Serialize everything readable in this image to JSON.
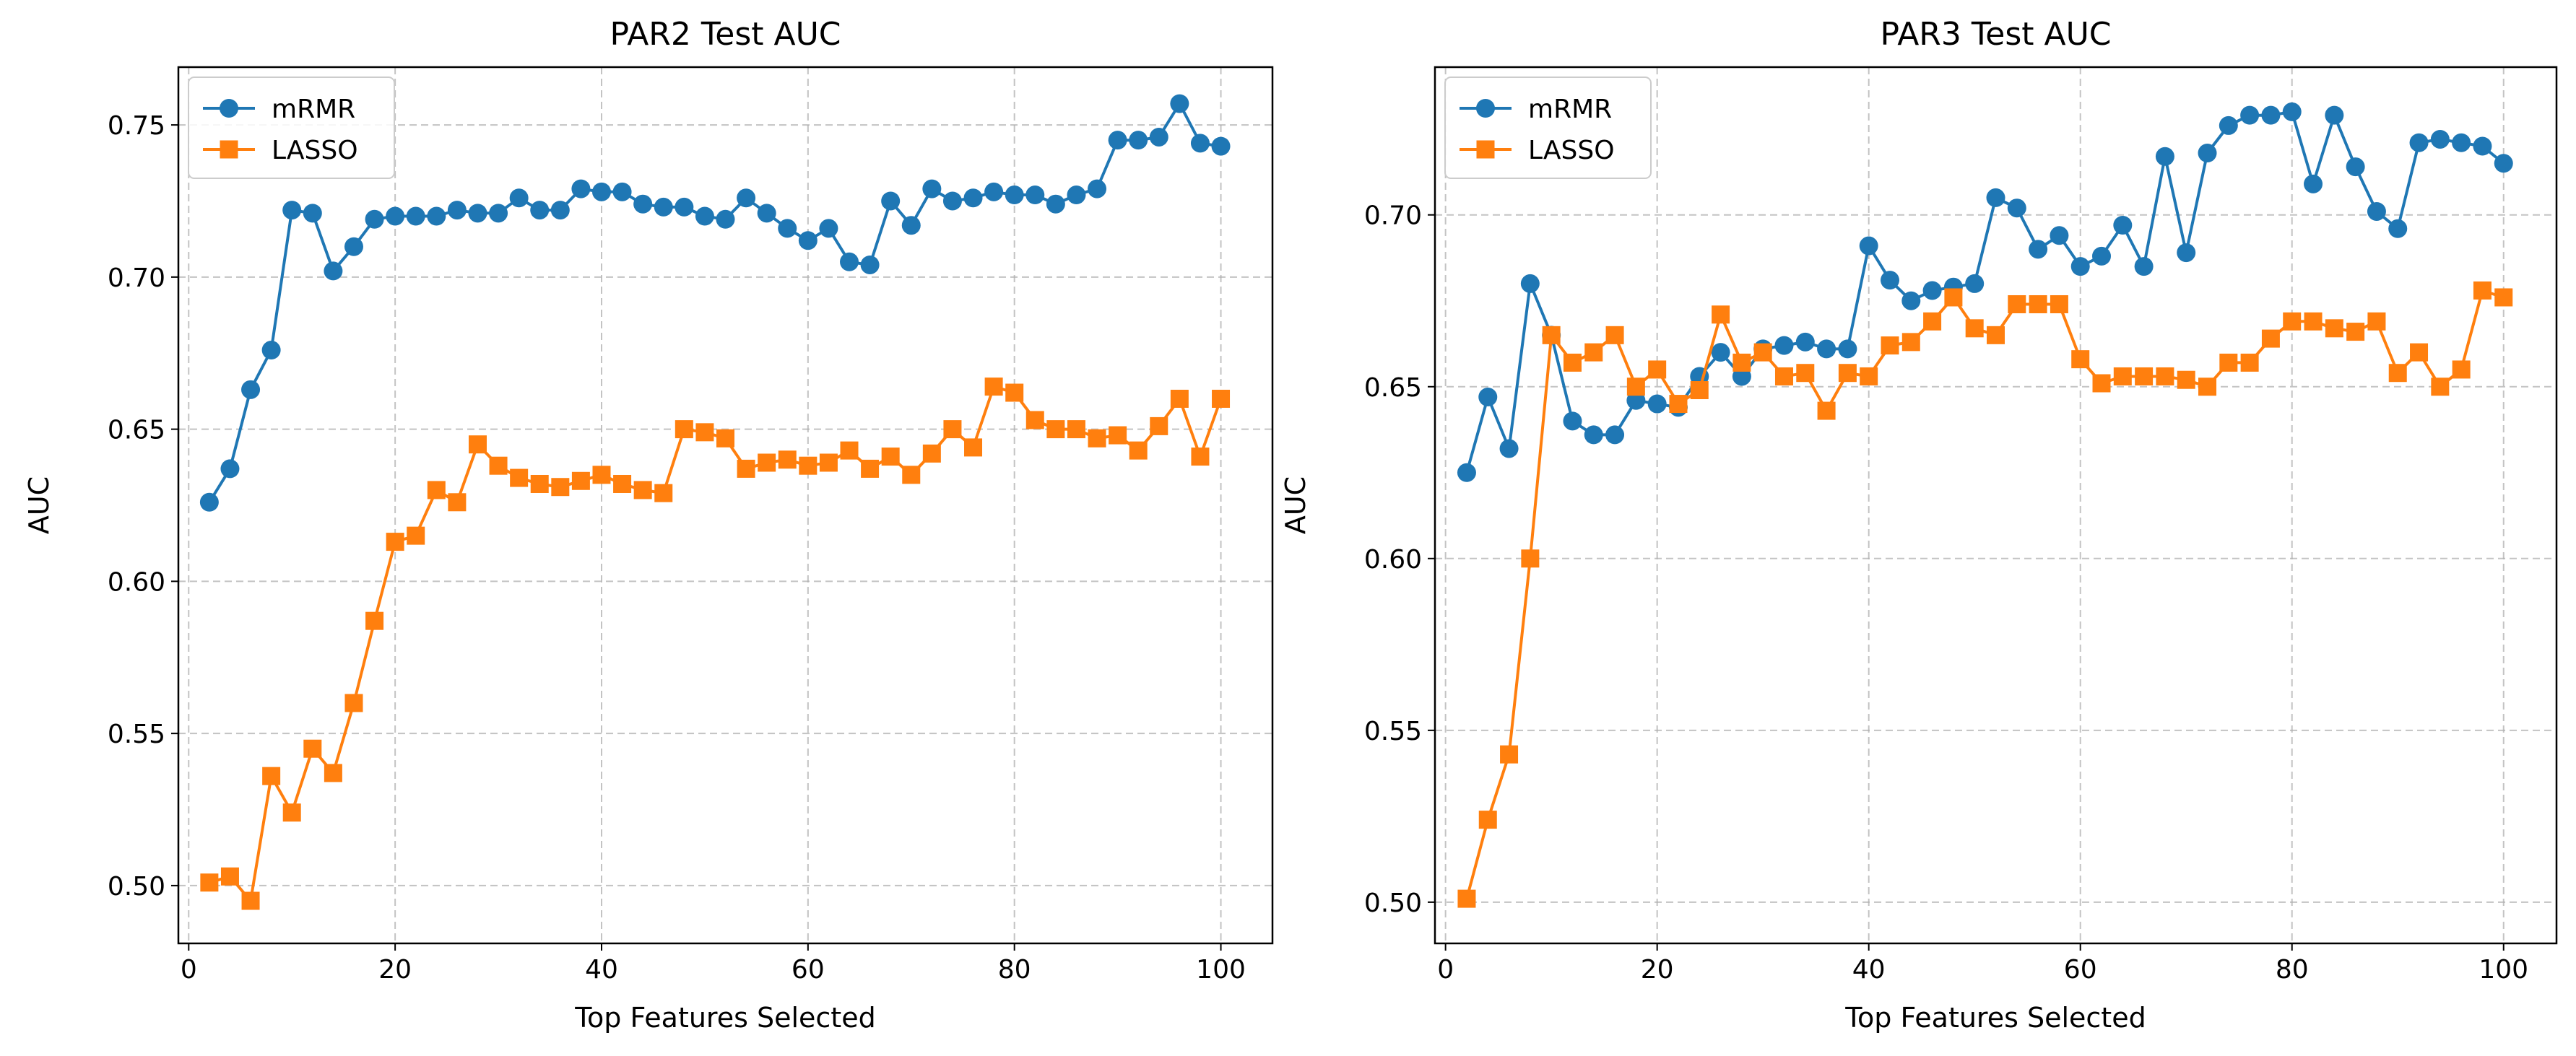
{
  "chart_data": [
    {
      "type": "line",
      "title": "PAR2 Test AUC",
      "xlabel": "Top Features Selected",
      "ylabel": "AUC",
      "xlim": [
        -1,
        105
      ],
      "ylim": [
        0.481,
        0.769
      ],
      "xticks": [
        0,
        20,
        40,
        60,
        80,
        100
      ],
      "xtick_labels": [
        "0",
        "20",
        "40",
        "60",
        "80",
        "100"
      ],
      "yticks": [
        0.5,
        0.55,
        0.6,
        0.65,
        0.7,
        0.75
      ],
      "ytick_labels": [
        "0.50",
        "0.55",
        "0.60",
        "0.65",
        "0.70",
        "0.75"
      ],
      "grid": true,
      "legend_position": "top-left",
      "x": [
        2,
        4,
        6,
        8,
        10,
        12,
        14,
        16,
        18,
        20,
        22,
        24,
        26,
        28,
        30,
        32,
        34,
        36,
        38,
        40,
        42,
        44,
        46,
        48,
        50,
        52,
        54,
        56,
        58,
        60,
        62,
        64,
        66,
        68,
        70,
        72,
        74,
        76,
        78,
        80,
        82,
        84,
        86,
        88,
        90,
        92,
        94,
        96,
        98,
        100
      ],
      "series": [
        {
          "name": "mRMR",
          "color": "#1f77b4",
          "marker": "circle",
          "values": [
            0.626,
            0.637,
            0.663,
            0.676,
            0.722,
            0.721,
            0.702,
            0.71,
            0.719,
            0.72,
            0.72,
            0.72,
            0.722,
            0.721,
            0.721,
            0.726,
            0.722,
            0.722,
            0.729,
            0.728,
            0.728,
            0.724,
            0.723,
            0.723,
            0.72,
            0.719,
            0.726,
            0.721,
            0.716,
            0.712,
            0.716,
            0.705,
            0.704,
            0.725,
            0.717,
            0.729,
            0.725,
            0.726,
            0.728,
            0.727,
            0.727,
            0.724,
            0.727,
            0.729,
            0.745,
            0.745,
            0.746,
            0.757,
            0.744,
            0.743
          ]
        },
        {
          "name": "LASSO",
          "color": "#ff7f0e",
          "marker": "square",
          "values": [
            0.501,
            0.503,
            0.495,
            0.536,
            0.524,
            0.545,
            0.537,
            0.56,
            0.587,
            0.613,
            0.615,
            0.63,
            0.626,
            0.645,
            0.638,
            0.634,
            0.632,
            0.631,
            0.633,
            0.635,
            0.632,
            0.63,
            0.629,
            0.65,
            0.649,
            0.647,
            0.637,
            0.639,
            0.64,
            0.638,
            0.639,
            0.643,
            0.637,
            0.641,
            0.635,
            0.642,
            0.65,
            0.644,
            0.664,
            0.662,
            0.653,
            0.65,
            0.65,
            0.647,
            0.648,
            0.643,
            0.651,
            0.66,
            0.641,
            0.66
          ]
        }
      ]
    },
    {
      "type": "line",
      "title": "PAR3 Test AUC",
      "xlabel": "Top Features Selected",
      "ylabel": "AUC",
      "xlim": [
        -1,
        105
      ],
      "ylim": [
        0.488,
        0.743
      ],
      "xticks": [
        0,
        20,
        40,
        60,
        80,
        100
      ],
      "xtick_labels": [
        "0",
        "20",
        "40",
        "60",
        "80",
        "100"
      ],
      "yticks": [
        0.5,
        0.55,
        0.6,
        0.65,
        0.7
      ],
      "ytick_labels": [
        "0.50",
        "0.55",
        "0.60",
        "0.65",
        "0.70"
      ],
      "grid": true,
      "legend_position": "top-left",
      "x": [
        2,
        4,
        6,
        8,
        10,
        12,
        14,
        16,
        18,
        20,
        22,
        24,
        26,
        28,
        30,
        32,
        34,
        36,
        38,
        40,
        42,
        44,
        46,
        48,
        50,
        52,
        54,
        56,
        58,
        60,
        62,
        64,
        66,
        68,
        70,
        72,
        74,
        76,
        78,
        80,
        82,
        84,
        86,
        88,
        90,
        92,
        94,
        96,
        98,
        100
      ],
      "series": [
        {
          "name": "mRMR",
          "color": "#1f77b4",
          "marker": "circle",
          "values": [
            0.625,
            0.647,
            0.632,
            0.68,
            0.665,
            0.64,
            0.636,
            0.636,
            0.646,
            0.645,
            0.644,
            0.653,
            0.66,
            0.653,
            0.661,
            0.662,
            0.663,
            0.661,
            0.661,
            0.691,
            0.681,
            0.675,
            0.678,
            0.679,
            0.68,
            0.705,
            0.702,
            0.69,
            0.694,
            0.685,
            0.688,
            0.697,
            0.685,
            0.717,
            0.689,
            0.718,
            0.726,
            0.729,
            0.729,
            0.73,
            0.709,
            0.729,
            0.714,
            0.701,
            0.696,
            0.721,
            0.722,
            0.721,
            0.72,
            0.715
          ]
        },
        {
          "name": "LASSO",
          "color": "#ff7f0e",
          "marker": "square",
          "values": [
            0.501,
            0.524,
            0.543,
            0.6,
            0.665,
            0.657,
            0.66,
            0.665,
            0.65,
            0.655,
            0.645,
            0.649,
            0.671,
            0.657,
            0.66,
            0.653,
            0.654,
            0.643,
            0.654,
            0.653,
            0.662,
            0.663,
            0.669,
            0.676,
            0.667,
            0.665,
            0.674,
            0.674,
            0.674,
            0.658,
            0.651,
            0.653,
            0.653,
            0.653,
            0.652,
            0.65,
            0.657,
            0.657,
            0.664,
            0.669,
            0.669,
            0.667,
            0.666,
            0.669,
            0.654,
            0.66,
            0.65,
            0.655,
            0.678,
            0.676
          ]
        }
      ]
    }
  ]
}
